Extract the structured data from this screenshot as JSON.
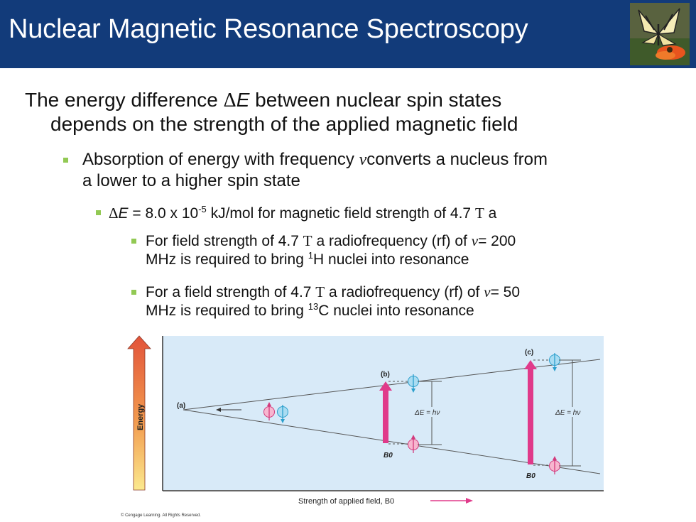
{
  "slide": {
    "title": "Nuclear Magnetic Resonance Spectroscopy",
    "bullet1": {
      "pre": "The energy difference ",
      "delta": "Δ",
      "var": "E",
      "post": " between nuclear spin states",
      "line2": "depends on the strength of the applied magnetic field"
    },
    "bullet2": {
      "pre": "Absorption of energy with frequency ",
      "nu": "ν",
      "post": "converts a nucleus from",
      "line2": "a lower to a higher spin state"
    },
    "bullet3": {
      "delta": "Δ",
      "var": "E",
      "mid": " = 8.0 x 10",
      "exp": "-5",
      "post": " kJ/mol for magnetic field strength of 4.7 ",
      "unit": "T",
      "end": " a"
    },
    "bullet4": {
      "pre": "For field strength of 4.7 ",
      "unit": "T",
      "mid": " a radiofrequency (rf) of ",
      "nu": "ν",
      "post": "= 200",
      "line2_pre": "MHz is required to bring ",
      "iso": "1",
      "line2_post": "H nuclei into resonance"
    },
    "bullet5": {
      "pre": "For a field strength of 4.7 ",
      "unit": "T",
      "mid": " a radiofrequency (rf) of ",
      "nu": "ν",
      "post": "= 50",
      "line2_pre": "MHz is required to bring ",
      "iso": "13",
      "line2_post": "C nuclei into resonance"
    },
    "copyright": "© Cengage Learning. All Rights Reserved."
  },
  "diagram": {
    "energy_label": "Energy",
    "point_a": "(a)",
    "point_b": "(b)",
    "point_c": "(c)",
    "delta_e_b": "ΔE = hν",
    "delta_e_c": "ΔE = hν",
    "b0_b": "B0",
    "b0_c": "B0",
    "xlabel": "Strength of applied field, B0",
    "colors": {
      "panel": "#d8eaf8",
      "pink": "#e03a8a",
      "cyan": "#39b8e0",
      "title_bar": "#123b7a",
      "bullet": "#92c954"
    }
  }
}
